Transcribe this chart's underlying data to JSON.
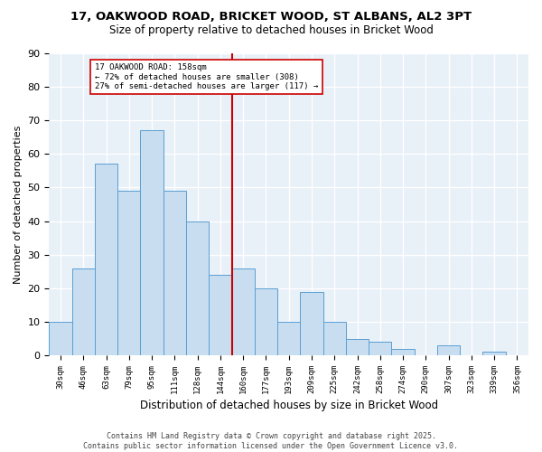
{
  "title1": "17, OAKWOOD ROAD, BRICKET WOOD, ST ALBANS, AL2 3PT",
  "title2": "Size of property relative to detached houses in Bricket Wood",
  "xlabel": "Distribution of detached houses by size in Bricket Wood",
  "ylabel": "Number of detached properties",
  "bins": [
    "30sqm",
    "46sqm",
    "63sqm",
    "79sqm",
    "95sqm",
    "111sqm",
    "128sqm",
    "144sqm",
    "160sqm",
    "177sqm",
    "193sqm",
    "209sqm",
    "225sqm",
    "242sqm",
    "258sqm",
    "274sqm",
    "290sqm",
    "307sqm",
    "323sqm",
    "339sqm",
    "356sqm"
  ],
  "bar_heights": [
    10,
    26,
    57,
    49,
    67,
    49,
    40,
    24,
    26,
    20,
    10,
    19,
    10,
    5,
    4,
    2,
    0,
    3,
    0,
    1,
    0
  ],
  "property_bin_index": 8,
  "annotation_title": "17 OAKWOOD ROAD: 158sqm",
  "annotation_line1": "← 72% of detached houses are smaller (308)",
  "annotation_line2": "27% of semi-detached houses are larger (117) →",
  "bar_color": "#c9ddf0",
  "bar_edge_color": "#5a9fd4",
  "vline_color": "#cc0000",
  "background_color": "#e8f0f8",
  "grid_color": "#ffffff",
  "footer": "Contains HM Land Registry data © Crown copyright and database right 2025.\nContains public sector information licensed under the Open Government Licence v3.0.",
  "ylim": [
    0,
    90
  ],
  "yticks": [
    0,
    10,
    20,
    30,
    40,
    50,
    60,
    70,
    80,
    90
  ]
}
